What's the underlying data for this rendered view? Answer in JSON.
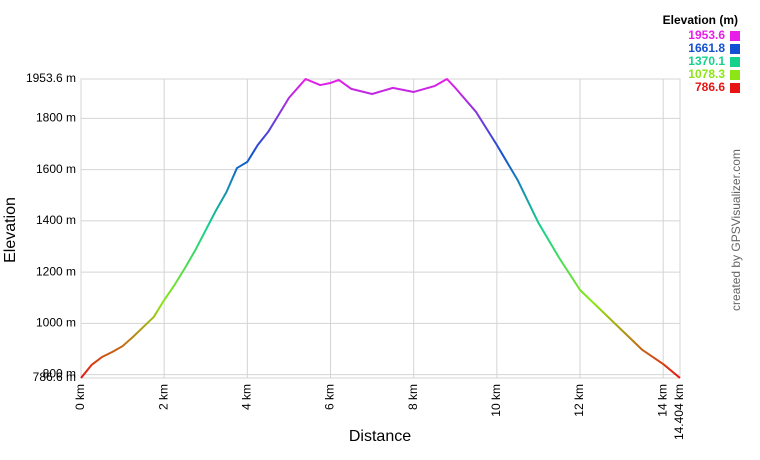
{
  "chart_data": {
    "type": "line",
    "x_label": "Distance",
    "y_label": "Elevation",
    "credit": "created by GPSVisualizer.com",
    "grid": true,
    "x": [
      0,
      0.25,
      0.5,
      0.75,
      1.0,
      1.25,
      1.5,
      1.75,
      2.0,
      2.25,
      2.5,
      2.75,
      3.0,
      3.25,
      3.5,
      3.75,
      4.0,
      4.25,
      4.5,
      4.75,
      5.0,
      5.25,
      5.4,
      5.75,
      6.0,
      6.2,
      6.5,
      7.0,
      7.5,
      8.0,
      8.5,
      8.8,
      9.0,
      9.5,
      10.0,
      10.5,
      11.0,
      11.5,
      12.0,
      12.5,
      13.0,
      13.5,
      14.0,
      14.404
    ],
    "series": [
      {
        "name": "Elevation",
        "values": [
          786.6,
          837,
          868,
          888,
          911,
          947,
          986,
          1025,
          1091,
          1150,
          1216,
          1286,
          1364,
          1442,
          1513,
          1606,
          1630,
          1696,
          1747,
          1813,
          1880,
          1926,
          1953.6,
          1930,
          1938,
          1950,
          1915,
          1895,
          1919,
          1903,
          1926,
          1953.6,
          1919,
          1825,
          1696,
          1559,
          1392,
          1255,
          1130,
          1052,
          974,
          896,
          841,
          786.6
        ]
      }
    ],
    "xlim": [
      0,
      14.404
    ],
    "ylim": [
      786.6,
      1953.6
    ],
    "xticks": [
      {
        "value": 0,
        "label": "0 km"
      },
      {
        "value": 2,
        "label": "2 km"
      },
      {
        "value": 4,
        "label": "4 km"
      },
      {
        "value": 6,
        "label": "6 km"
      },
      {
        "value": 8,
        "label": "8 km"
      },
      {
        "value": 10,
        "label": "10 km"
      },
      {
        "value": 12,
        "label": "12 km"
      },
      {
        "value": 14,
        "label": "14 km"
      },
      {
        "value": 14.404,
        "label": "14.404 km"
      }
    ],
    "yticks": [
      {
        "value": 786.6,
        "label": "786.6 m"
      },
      {
        "value": 800,
        "label": "800 m"
      },
      {
        "value": 1000,
        "label": "1000 m"
      },
      {
        "value": 1200,
        "label": "1200 m"
      },
      {
        "value": 1400,
        "label": "1400 m"
      },
      {
        "value": 1600,
        "label": "1600 m"
      },
      {
        "value": 1800,
        "label": "1800 m"
      },
      {
        "value": 1953.6,
        "label": "1953.6 m"
      }
    ],
    "legend": {
      "title": "Elevation (m)",
      "entries": [
        {
          "value": 1953.6,
          "color": "#e81ee8"
        },
        {
          "value": 1661.8,
          "color": "#1450d2"
        },
        {
          "value": 1370.1,
          "color": "#14d28c"
        },
        {
          "value": 1078.3,
          "color": "#8ce614"
        },
        {
          "value": 786.6,
          "color": "#e81414"
        }
      ]
    }
  }
}
